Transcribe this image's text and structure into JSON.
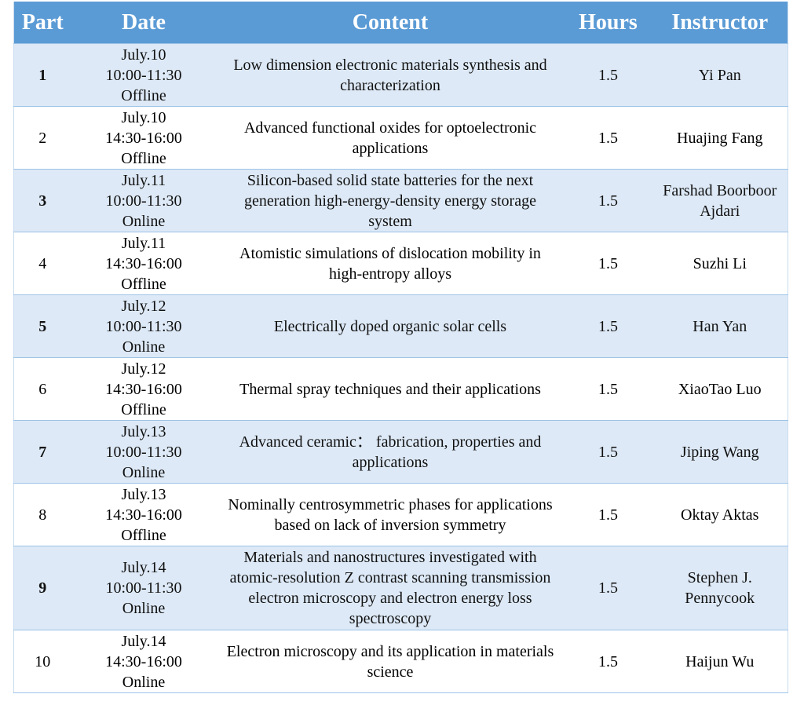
{
  "table": {
    "header": [
      "Part",
      "Date",
      "Content",
      "Hours",
      "Instructor"
    ],
    "rows": [
      [
        1,
        [
          "July.10",
          "10:00-11:30",
          "Offline"
        ],
        "Low dimension electronic materials synthesis and characterization",
        1.5,
        "Yi Pan"
      ],
      [
        2,
        [
          "July.10",
          "14:30-16:00",
          "Offline"
        ],
        "Advanced functional oxides for optoelectronic applications",
        1.5,
        "Huajing Fang"
      ],
      [
        3,
        [
          "July.11",
          "10:00-11:30",
          "Online"
        ],
        "Silicon-based solid state batteries for the next generation high-energy-density energy storage system",
        1.5,
        "Farshad Boorboor Ajdari"
      ],
      [
        4,
        [
          "July.11",
          "14:30-16:00",
          "Offline"
        ],
        "Atomistic simulations of dislocation mobility in high-entropy alloys",
        1.5,
        "Suzhi Li"
      ],
      [
        5,
        [
          "July.12",
          "10:00-11:30",
          "Online"
        ],
        "Electrically doped organic solar cells",
        1.5,
        "Han Yan"
      ],
      [
        6,
        [
          "July.12",
          "14:30-16:00",
          "Offline"
        ],
        "Thermal spray techniques and their applications",
        1.5,
        "XiaoTao Luo"
      ],
      [
        7,
        [
          "July.13",
          "10:00-11:30",
          "Online"
        ],
        "Advanced ceramic： fabrication, properties and applications",
        1.5,
        "Jiping Wang"
      ],
      [
        8,
        [
          "July.13",
          "14:30-16:00",
          "Offline"
        ],
        "Nominally centrosymmetric phases for applications based on lack of inversion symmetry",
        1.5,
        "Oktay Aktas"
      ],
      [
        9,
        [
          "July.14",
          "10:00-11:30",
          "Online"
        ],
        "Materials and nanostructures investigated with atomic-resolution Z contrast scanning transmission electron microscopy and electron energy loss spectroscopy",
        1.5,
        "Stephen J. Pennycook"
      ],
      [
        10,
        [
          "July.14",
          "14:30-16:00",
          "Online"
        ],
        "Electron microscopy and its application in materials science",
        1.5,
        "Haijun Wu"
      ]
    ]
  }
}
